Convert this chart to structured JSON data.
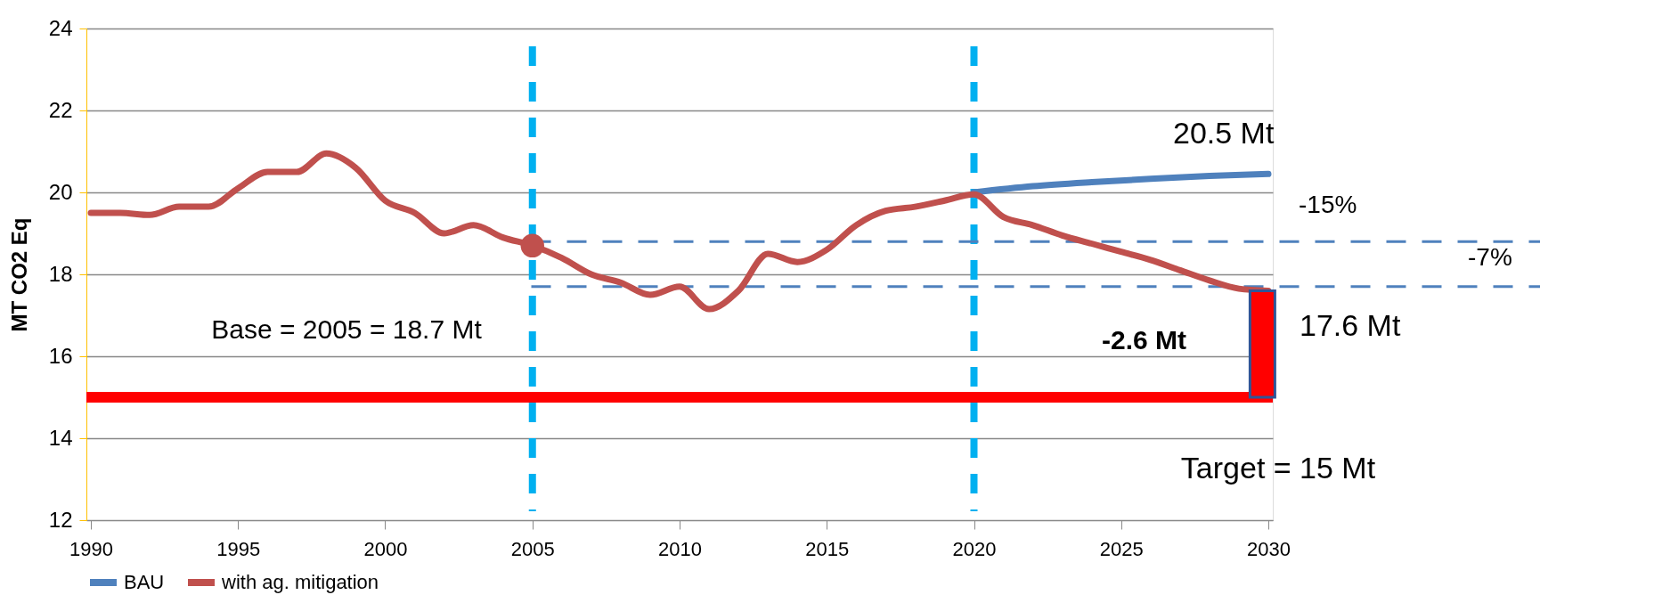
{
  "chart_data": {
    "type": "line",
    "ylabel": "MT CO2 Eq",
    "xlim": [
      1990,
      2030
    ],
    "xticks": [
      1990,
      1995,
      2000,
      2005,
      2010,
      2015,
      2020,
      2025,
      2030
    ],
    "ylim": [
      12,
      24
    ],
    "yticks": [
      12,
      14,
      16,
      18,
      20,
      22,
      24
    ],
    "grid": "y",
    "legend": "bottom",
    "series": [
      {
        "name": "BAU",
        "color": "#4f81bd",
        "x": [
          2020,
          2022,
          2024,
          2026,
          2028,
          2030
        ],
        "values": [
          20.0,
          20.15,
          20.25,
          20.33,
          20.4,
          20.45
        ]
      },
      {
        "name": "with ag. mitigation",
        "color": "#c0504d",
        "x": [
          1990,
          1991,
          1992,
          1993,
          1994,
          1995,
          1996,
          1997,
          1998,
          1999,
          2000,
          2001,
          2002,
          2003,
          2004,
          2005,
          2006,
          2007,
          2008,
          2009,
          2010,
          2011,
          2012,
          2013,
          2014,
          2015,
          2016,
          2017,
          2018,
          2019,
          2020,
          2021,
          2022,
          2023,
          2024,
          2025,
          2026,
          2027,
          2028,
          2029,
          2030
        ],
        "values": [
          19.5,
          19.5,
          19.45,
          19.65,
          19.65,
          20.1,
          20.5,
          20.5,
          20.95,
          20.6,
          19.8,
          19.5,
          19.0,
          19.2,
          18.9,
          18.7,
          18.4,
          18.0,
          17.8,
          17.5,
          17.7,
          17.15,
          17.6,
          18.5,
          18.3,
          18.6,
          19.2,
          19.55,
          19.65,
          19.8,
          19.95,
          19.4,
          19.2,
          18.95,
          18.75,
          18.55,
          18.35,
          18.1,
          17.85,
          17.65,
          17.6
        ]
      },
      {
        "type": "scatter",
        "color": "#c0504d",
        "marker": "circle",
        "x": [
          2005
        ],
        "values": [
          18.7
        ]
      },
      {
        "type": "bar",
        "color": "#ff0000",
        "x": [
          2029.8
        ],
        "base": [
          15
        ],
        "values": [
          2.6
        ]
      }
    ],
    "ref_lines": [
      {
        "axis": "y",
        "value": 15,
        "label": "Target = 15 Mt",
        "color": "#ff0000",
        "line_style": "solid"
      },
      {
        "axis": "x",
        "value": 2005,
        "color": "#00b0f0",
        "line_style": "dashed"
      },
      {
        "axis": "x",
        "value": 2020,
        "color": "#00b0f0",
        "line_style": "dashed"
      },
      {
        "axis": "y",
        "value": 18.8,
        "color": "#4f81bd",
        "line_style": "dashed"
      },
      {
        "axis": "y",
        "value": 17.7,
        "color": "#4f81bd",
        "line_style": "dashed"
      }
    ],
    "annotations": [
      {
        "text": "20.5 Mt",
        "x": 2030,
        "y": 20.45
      },
      "-15%",
      "-7%",
      {
        "text": "17.6 Mt",
        "x": 2030,
        "y": 17.6
      },
      "-2.6 Mt",
      "Base = 2005 = 18.7 Mt"
    ]
  }
}
